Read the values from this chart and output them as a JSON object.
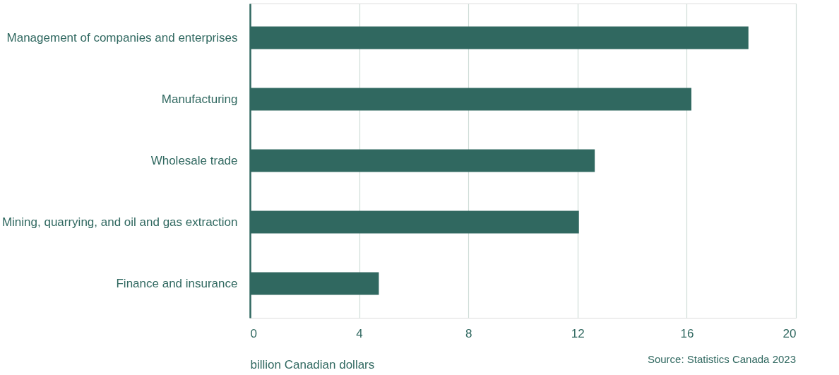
{
  "chart_data": {
    "type": "bar",
    "orientation": "horizontal",
    "categories": [
      "Management of companies and enterprises",
      "Manufacturing",
      "Wholesale trade",
      "Mining, quarrying, and oil and gas extraction",
      "Finance and insurance"
    ],
    "values": [
      18.26,
      16.17,
      12.63,
      12.05,
      4.72
    ],
    "color": "#306860",
    "xlim": [
      0,
      20
    ],
    "xticks": [
      0,
      4,
      8,
      12,
      16,
      20
    ],
    "grid": "x",
    "xlabel": "billion Canadian dollars",
    "annotations": [
      "Source: Statistics Canada 2023"
    ]
  }
}
